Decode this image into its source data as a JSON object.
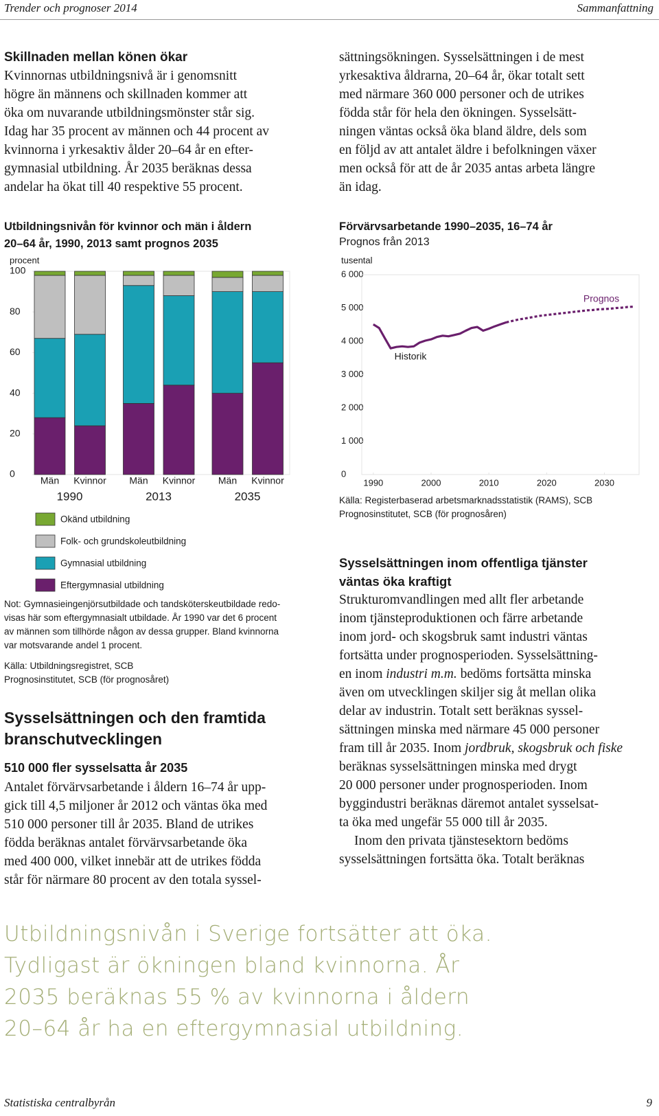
{
  "header": {
    "left": "Trender och prognoser 2014",
    "right": "Sammanfattning"
  },
  "left_section": {
    "heading": "Skillnaden mellan könen ökar",
    "lines": [
      "Kvinnornas utbildningsnivå är i genomsnitt",
      "högre än männens och skillnaden kommer att",
      "öka om nuvarande utbildningsmönster står sig.",
      "Idag har 35 procent av männen och 44 procent av",
      "kvinnorna i yrkesaktiv ålder 20–64 år en efter-",
      "gymnasial utbildning. År 2035 beräknas dessa",
      "andelar ha ökat till 40 respektive 55 procent."
    ]
  },
  "chart_data": [
    {
      "type": "bar",
      "stacked": true,
      "title": [
        "Utbildningsnivån för kvinnor och män i åldern",
        "20–64 år, 1990, 2013 samt prognos 2035"
      ],
      "y_label": "procent",
      "categories": [
        "Män",
        "Kvinnor",
        "Män",
        "Kvinnor",
        "Män",
        "Kvinnor"
      ],
      "groups": [
        "1990",
        "2013",
        "2035"
      ],
      "ylim": [
        0,
        100
      ],
      "yticks": [
        0,
        20,
        40,
        60,
        80,
        100
      ],
      "series": [
        {
          "name": "Eftergymnasial utbildning",
          "color": "#6a1f6c",
          "values": [
            28,
            24,
            35,
            44,
            40,
            55
          ]
        },
        {
          "name": "Gymnasial utbildning",
          "color": "#1aa0b4",
          "values": [
            39,
            45,
            58,
            44,
            50,
            35
          ]
        },
        {
          "name": "Folk- och grundskoleutbildning",
          "color": "#bfbfbf",
          "values": [
            31,
            29,
            5,
            10,
            7,
            8
          ]
        },
        {
          "name": "Okänd utbildning",
          "color": "#78a832",
          "values": [
            2,
            2,
            2,
            2,
            3,
            2
          ]
        }
      ],
      "note": [
        "Not: Gymnasieingenjörsutbildade och tandsköterskeutbildade redo-",
        "visas här som eftergymnasialt utbildade. År 1990 var det 6 procent",
        "av männen som tillhörde någon av dessa grupper. Bland kvinnorna",
        "var motsvarande andel 1 procent."
      ],
      "source": [
        "Källa: Utbildningsregistret, SCB",
        "Prognosinstitutet, SCB (för prognosåret)"
      ]
    },
    {
      "type": "line",
      "title": [
        "Förvärvsarbetande 1990–2035, 16–74 år"
      ],
      "subtitle": "Prognos från 2013",
      "y_label": "tusental",
      "x": [
        1990,
        1991,
        1992,
        1993,
        1994,
        1995,
        1996,
        1997,
        1998,
        1999,
        2000,
        2001,
        2002,
        2003,
        2004,
        2005,
        2006,
        2007,
        2008,
        2009,
        2010,
        2011,
        2012,
        2013,
        2014,
        2015,
        2016,
        2017,
        2018,
        2019,
        2020,
        2021,
        2022,
        2023,
        2024,
        2025,
        2026,
        2027,
        2028,
        2029,
        2030,
        2031,
        2032,
        2033,
        2034,
        2035
      ],
      "xlim": [
        1988,
        2036
      ],
      "xticks": [
        1990,
        2000,
        2010,
        2020,
        2030
      ],
      "ylim": [
        0,
        6000
      ],
      "yticks": [
        0,
        {
          "value": 1000,
          "label": "1 000"
        },
        {
          "value": 2000,
          "label": "2 000"
        },
        {
          "value": 3000,
          "label": "3 000"
        },
        {
          "value": 4000,
          "label": "4 000"
        },
        {
          "value": 5000,
          "label": "5 000"
        },
        {
          "value": 6000,
          "label": "6 000"
        }
      ],
      "series": [
        {
          "name": "Historik",
          "color": "#6a1f6c",
          "dashed": false,
          "values": [
            4510,
            4400,
            4090,
            3790,
            3830,
            3850,
            3830,
            3850,
            3960,
            4020,
            4060,
            4130,
            4170,
            4150,
            4190,
            4230,
            4320,
            4400,
            4430,
            4320,
            4380,
            4450,
            4510,
            4570,
            null,
            null,
            null,
            null,
            null,
            null,
            null,
            null,
            null,
            null,
            null,
            null,
            null,
            null,
            null,
            null,
            null,
            null,
            null,
            null,
            null,
            null
          ]
        },
        {
          "name": "Prognos",
          "color": "#6a1f6c",
          "dashed": true,
          "values": [
            null,
            null,
            null,
            null,
            null,
            null,
            null,
            null,
            null,
            null,
            null,
            null,
            null,
            null,
            null,
            null,
            null,
            null,
            null,
            null,
            null,
            null,
            null,
            4570,
            4610,
            4650,
            4680,
            4710,
            4740,
            4770,
            4790,
            4810,
            4830,
            4850,
            4870,
            4890,
            4910,
            4930,
            4940,
            4960,
            4970,
            4980,
            5000,
            5010,
            5030,
            5040
          ]
        }
      ],
      "source": [
        "Källa: Registerbaserad arbetsmarknadsstatistik (RAMS), SCB",
        "Prognosinstitutet, SCB (för prognosåren)"
      ]
    }
  ],
  "section": {
    "heading": [
      "Sysselsättningen och den framtida",
      "branschutvecklingen"
    ],
    "subheading": "510 000 fler sysselsatta år 2035",
    "lines": [
      "Antalet förvärvsarbetande i åldern 16–74 år upp-",
      "gick till 4,5 miljoner år 2012 och väntas öka med",
      "510 000 personer till år 2035. Bland de utrikes",
      "födda beräknas antalet förvärvsarbetande öka",
      "med 400 000, vilket innebär att de utrikes födda",
      "står för närmare 80 procent av den totala syssel-"
    ],
    "continued_lines": [
      "sättningsökningen. Sysselsättningen i de mest",
      "yrkesaktiva åldrarna, 20–64 år, ökar totalt sett",
      "med närmare 360 000 personer och de utrikes",
      "födda står för hela den ökningen. Sysselsätt-",
      "ningen väntas också öka bland äldre, dels som",
      "en följd av att antalet äldre i befolkningen växer",
      "men också för att de år 2035 antas arbeta längre",
      "än idag."
    ]
  },
  "public_section": {
    "heading": [
      "Sysselsättningen inom offentliga tjänster",
      "väntas öka kraftigt"
    ],
    "paragraph1": [
      "Strukturomvandlingen med allt fler arbetande",
      "inom tjänsteproduktionen och färre arbetande",
      "inom jord- och skogsbruk samt industri väntas",
      "fortsätta under prognosperioden. Sysselsättning-",
      [
        "en inom ",
        "industri m.m.",
        " bedöms fortsätta minska"
      ],
      "även om utvecklingen skiljer sig åt mellan olika",
      "delar av industrin. Totalt sett beräknas syssel-",
      "sättningen minska med närmare 45 000 personer",
      [
        "fram till år 2035. Inom ",
        "jordbruk, skogsbruk och fiske"
      ],
      "beräknas sysselsättningen minska med drygt",
      "20 000 personer under prognosperioden. Inom",
      "byggindustri beräknas däremot antalet sysselsat-",
      "ta öka med ungefär 55 000 till år 2035."
    ],
    "paragraph2": [
      "Inom den privata tjänstesektorn bedöms",
      "sysselsättningen fortsätta öka. Totalt beräknas"
    ]
  },
  "quote": [
    "Utbildningsnivån i Sverige fortsätter att öka.",
    "Tydligast är ökningen bland kvinnorna. År",
    "2035 beräknas 55 % av kvinnorna i åldern",
    "20–64 år ha en eftergymnasial utbildning."
  ],
  "footer": {
    "left": "Statistiska centralbyrån",
    "right": "9"
  }
}
